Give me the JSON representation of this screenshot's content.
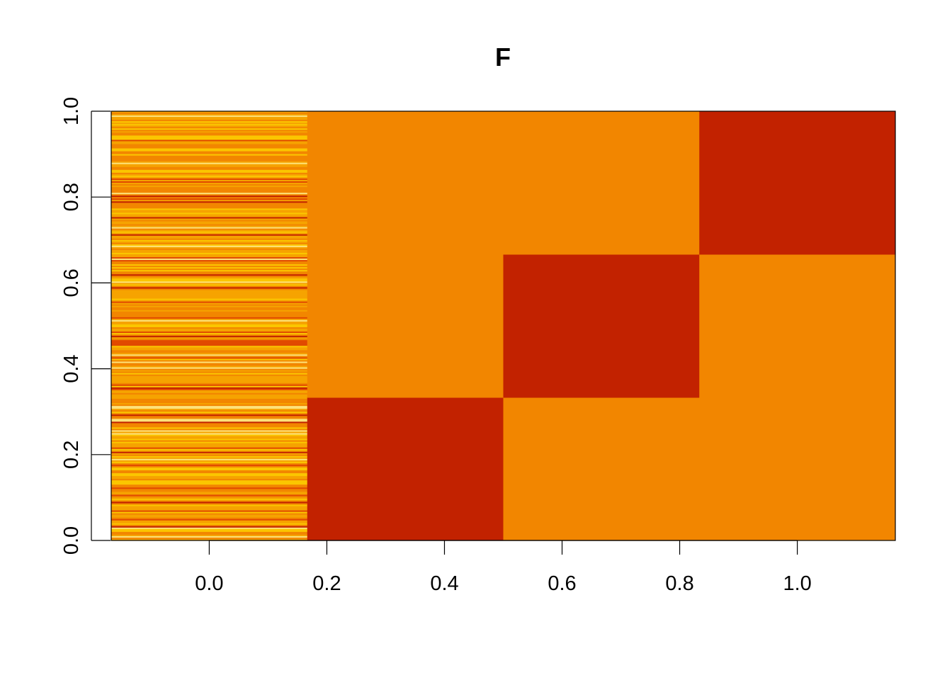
{
  "chart_data": {
    "type": "heatmap",
    "title": "F",
    "xlabel": "",
    "ylabel": "",
    "x_ticks": [
      "0.0",
      "0.2",
      "0.4",
      "0.6",
      "0.8",
      "1.0"
    ],
    "y_ticks": [
      "0.0",
      "0.2",
      "0.4",
      "0.6",
      "0.8",
      "1.0"
    ],
    "xlim": [
      -0.1667,
      1.1667
    ],
    "ylim": [
      0,
      1
    ],
    "colors": {
      "low": "#c22200",
      "mid": "#f28600",
      "stripe_palette": [
        "#c22200",
        "#e14a00",
        "#f28600",
        "#f6a300",
        "#fbc600",
        "#fde27a"
      ]
    },
    "columns": [
      {
        "x_center": 0.0,
        "rows": 300,
        "pattern": "noise"
      },
      {
        "x_center": 0.3333,
        "blocks": [
          {
            "y0": 0,
            "y1": 0.3333,
            "color": "low"
          },
          {
            "y0": 0.3333,
            "y1": 1.0,
            "color": "mid"
          }
        ]
      },
      {
        "x_center": 0.6667,
        "blocks": [
          {
            "y0": 0,
            "y1": 0.3333,
            "color": "mid"
          },
          {
            "y0": 0.3333,
            "y1": 0.6667,
            "color": "low"
          },
          {
            "y0": 0.6667,
            "y1": 1.0,
            "color": "mid"
          }
        ]
      },
      {
        "x_center": 1.0,
        "blocks": [
          {
            "y0": 0,
            "y1": 0.6667,
            "color": "mid"
          },
          {
            "y0": 0.6667,
            "y1": 1.0,
            "color": "low"
          }
        ]
      }
    ]
  }
}
